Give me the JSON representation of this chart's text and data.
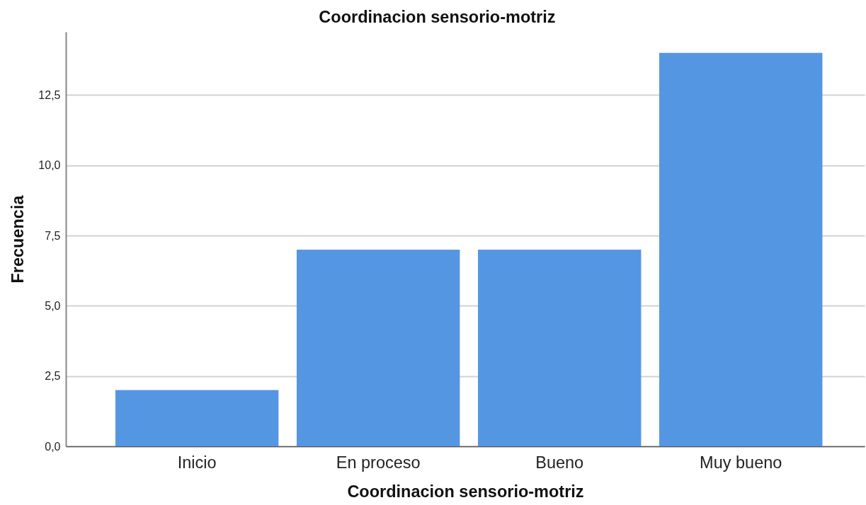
{
  "chart_data": {
    "type": "bar",
    "title": "Coordinacion sensorio-motriz",
    "xlabel": "Coordinacion sensorio-motriz",
    "ylabel": "Frecuencia",
    "categories": [
      "Inicio",
      "En proceso",
      "Bueno",
      "Muy bueno"
    ],
    "values": [
      2,
      7,
      7,
      14
    ],
    "color": "#5596e3",
    "ylim": [
      0,
      14.75
    ],
    "yticks": [
      {
        "value": 0,
        "label": "0,0"
      },
      {
        "value": 2.5,
        "label": "2,5"
      },
      {
        "value": 5,
        "label": "5,0"
      },
      {
        "value": 7.5,
        "label": "7,5"
      },
      {
        "value": 10,
        "label": "10,0"
      },
      {
        "value": 12.5,
        "label": "12,5"
      }
    ],
    "grid": "y"
  }
}
